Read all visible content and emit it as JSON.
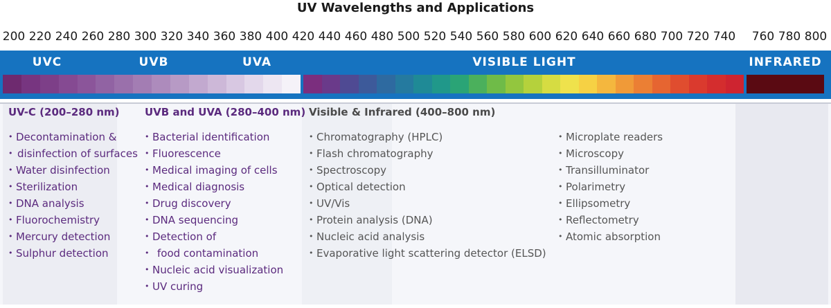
{
  "title": "UV Wavelengths and Applications",
  "scale_ticks": [
    "200",
    "220",
    "240",
    "260",
    "280",
    "300",
    "320",
    "340",
    "360",
    "380",
    "400",
    "420",
    "440",
    "460",
    "480",
    "500",
    "520",
    "540",
    "560",
    "580",
    "600",
    "620",
    "640",
    "660",
    "680",
    "700",
    "720",
    "740",
    "760",
    "780",
    "800"
  ],
  "bands": {
    "uvc": "UVC",
    "uvb": "UVB",
    "uva": "UVA",
    "visible": "VISIBLE LIGHT",
    "infrared": "INFRARED"
  },
  "colors": {
    "band_bar": "#1673c0",
    "heading_purple": "#5b2a7e",
    "infrared": "#5a0a12"
  },
  "columns": {
    "uvc": {
      "heading": "UV-C (200–280 nm)",
      "items": [
        "Decontamination &",
        "disinfection of surfaces",
        "Water disinfection",
        "Sterilization",
        "DNA analysis",
        "Fluorochemistry",
        "Mercury detection",
        "Sulphur detection"
      ]
    },
    "uvb_uva": {
      "heading": "UVB and UVA (280–400 nm)",
      "items": [
        "Bacterial identification",
        "Fluorescence",
        "Medical imaging of cells",
        "Medical diagnosis",
        "Drug discovery",
        "DNA sequencing",
        "Detection of",
        "food contamination",
        "Nucleic acid visualization",
        "UV curing"
      ]
    },
    "visible_ir": {
      "heading": "Visible & Infrared (400–800 nm)",
      "items_left": [
        "Chromatography (HPLC)",
        "Flash chromatography",
        "Spectroscopy",
        "Optical detection",
        "UV/Vis",
        "Protein analysis (DNA)",
        "Nucleic acid analysis",
        "Evaporative light scattering detector (ELSD)"
      ],
      "items_right": [
        "Microplate readers",
        "Microscopy",
        "Transilluminator",
        "Polarimetry",
        "Ellipsometry",
        "Reflectometry",
        "Atomic absorption"
      ]
    }
  }
}
